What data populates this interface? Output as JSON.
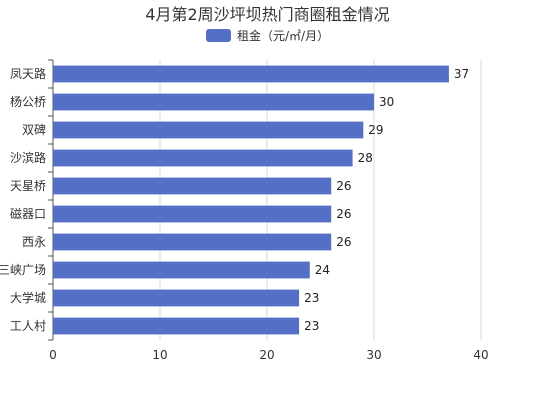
{
  "chart_data": {
    "type": "bar",
    "orientation": "horizontal",
    "title": "4月第2周沙坪坝热门商圈租金情况",
    "legend": {
      "position": "top-center"
    },
    "series": [
      {
        "name": "租金（元/㎡/月）",
        "color": "#5470c6",
        "values": [
          37,
          30,
          29,
          28,
          26,
          26,
          26,
          24,
          23,
          23
        ]
      }
    ],
    "categories": [
      "凤天路",
      "杨公桥",
      "双碑",
      "沙滨路",
      "天星桥",
      "磁器口",
      "西永",
      "三峡广场",
      "大学城",
      "工人村"
    ],
    "xlim": [
      0,
      40
    ],
    "xticks": [
      0,
      10,
      20,
      30,
      40
    ],
    "grid": true
  }
}
